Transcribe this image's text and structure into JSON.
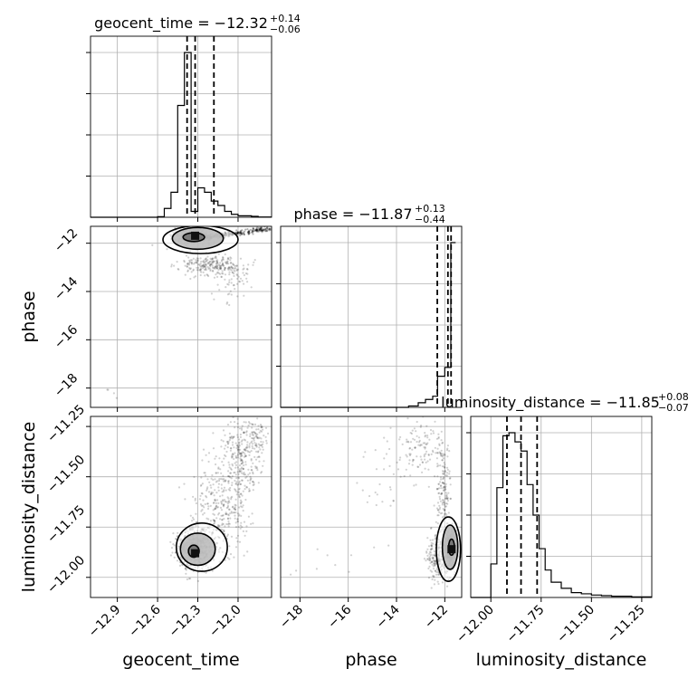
{
  "chart_data": {
    "type": "corner",
    "parameters": [
      {
        "name": "geocent_time",
        "axis_label": "geocent_time",
        "title_main": "geocent_time = −12.32",
        "title_plus": "+0.14",
        "title_minus": "−0.06",
        "range": [
          -13.1,
          -11.75
        ],
        "ticks": [
          -12.9,
          -12.6,
          -12.3,
          -12.0
        ],
        "tick_labels": [
          "−12.9",
          "−12.6",
          "−12.3",
          "−12.0"
        ],
        "quantiles": [
          -12.38,
          -12.32,
          -12.18
        ],
        "hist_edges": [
          -13.1,
          -13.0,
          -12.9,
          -12.8,
          -12.7,
          -12.6,
          -12.55,
          -12.5,
          -12.45,
          -12.4,
          -12.35,
          -12.3,
          -12.25,
          -12.2,
          -12.15,
          -12.1,
          -12.05,
          -12.0,
          -11.95,
          -11.9,
          -11.85,
          -11.75
        ],
        "hist_counts": [
          0,
          0,
          0,
          0,
          0,
          2,
          30,
          85,
          380,
          560,
          20,
          100,
          85,
          55,
          40,
          20,
          10,
          5,
          5,
          3,
          1
        ]
      },
      {
        "name": "phase",
        "axis_label": "phase",
        "title_main": "phase = −11.87",
        "title_plus": "+0.13",
        "title_minus": "−0.44",
        "range": [
          -18.8,
          -11.3
        ],
        "ticks": [
          -18,
          -16,
          -14,
          -12
        ],
        "tick_labels": [
          "−18",
          "−16",
          "−14",
          "−12"
        ],
        "quantiles": [
          -12.31,
          -11.87,
          -11.74
        ],
        "hist_edges": [
          -18.8,
          -13.5,
          -13.1,
          -12.8,
          -12.5,
          -12.3,
          -12.0,
          -11.75,
          -11.55
        ],
        "hist_counts": [
          0,
          3,
          10,
          17,
          24,
          67,
          86,
          355
        ]
      },
      {
        "name": "luminosity_distance",
        "axis_label": "luminosity_distance",
        "title_main": "luminosity_distance = −11.85",
        "title_plus": "+0.08",
        "title_minus": "−0.07",
        "range": [
          -12.1,
          -11.2
        ],
        "ticks": [
          -12.0,
          -11.75,
          -11.5,
          -11.25
        ],
        "tick_labels": [
          "−12.00",
          "−11.75",
          "−11.50",
          "−11.25"
        ],
        "quantiles": [
          -11.92,
          -11.85,
          -11.77
        ],
        "hist_edges": [
          -12.1,
          -12.0,
          -11.97,
          -11.94,
          -11.91,
          -11.88,
          -11.85,
          -11.82,
          -11.79,
          -11.76,
          -11.73,
          -11.7,
          -11.65,
          -11.6,
          -11.55,
          -11.5,
          -11.45,
          -11.4,
          -11.3,
          -11.2
        ],
        "hist_counts": [
          0,
          55,
          180,
          265,
          270,
          255,
          240,
          185,
          135,
          80,
          45,
          25,
          15,
          8,
          6,
          4,
          3,
          2,
          1
        ]
      }
    ],
    "samples_2d": [
      {
        "x_param": "geocent_time",
        "y_param": "phase",
        "clusters": [
          {
            "cx": -12.34,
            "cy": -11.72,
            "sx": 0.07,
            "sy": 0.15,
            "n": 450
          },
          {
            "cx": -12.2,
            "cy": -12.9,
            "sx": 0.12,
            "sy": 0.22,
            "n": 240
          },
          {
            "cx": -12.05,
            "cy": -13.6,
            "sx": 0.06,
            "sy": 0.45,
            "n": 60
          },
          {
            "cx": -13.0,
            "cy": -17.9,
            "sx": 0.08,
            "sy": 0.5,
            "n": 6
          }
        ],
        "band": {
          "x0": -12.35,
          "y0": -11.85,
          "x1": -11.78,
          "y1": -11.4,
          "n": 280,
          "spread": 0.08
        },
        "contours": [
          {
            "cx": -12.33,
            "cy": -11.75,
            "rx": 0.08,
            "ry": 0.18
          },
          {
            "cx": -12.3,
            "cy": -11.8,
            "rx": 0.19,
            "ry": 0.45
          },
          {
            "cx": -12.28,
            "cy": -11.85,
            "rx": 0.28,
            "ry": 0.58
          }
        ],
        "peak": {
          "x": -12.32,
          "y": -11.69
        }
      },
      {
        "x_param": "geocent_time",
        "y_param": "luminosity_distance",
        "clusters": [
          {
            "cx": -12.32,
            "cy": -11.86,
            "sx": 0.07,
            "sy": 0.05,
            "n": 650
          },
          {
            "cx": -12.12,
            "cy": -11.65,
            "sx": 0.1,
            "sy": 0.12,
            "n": 350
          },
          {
            "cx": -11.98,
            "cy": -11.4,
            "sx": 0.07,
            "sy": 0.1,
            "n": 260
          },
          {
            "cx": -11.85,
            "cy": -11.3,
            "sx": 0.05,
            "sy": 0.05,
            "n": 60
          }
        ],
        "contours": [
          {
            "cx": -12.33,
            "cy": -11.87,
            "rx": 0.04,
            "ry": 0.03
          },
          {
            "cx": -12.3,
            "cy": -11.86,
            "rx": 0.13,
            "ry": 0.08
          },
          {
            "cx": -12.27,
            "cy": -11.85,
            "rx": 0.19,
            "ry": 0.12
          }
        ],
        "peak": {
          "x": -12.32,
          "y": -11.88
        }
      },
      {
        "x_param": "phase",
        "y_param": "luminosity_distance",
        "clusters": [
          {
            "cx": -11.75,
            "cy": -11.85,
            "sx": 0.12,
            "sy": 0.05,
            "n": 650
          },
          {
            "cx": -12.3,
            "cy": -11.9,
            "sx": 0.25,
            "sy": 0.06,
            "n": 220
          },
          {
            "cx": -12.1,
            "cy": -11.55,
            "sx": 0.15,
            "sy": 0.12,
            "n": 160
          },
          {
            "cx": -13.0,
            "cy": -11.35,
            "sx": 0.4,
            "sy": 0.08,
            "n": 110
          },
          {
            "cx": -14.5,
            "cy": -11.45,
            "sx": 0.6,
            "sy": 0.15,
            "n": 35
          },
          {
            "cx": -16.5,
            "cy": -11.95,
            "sx": 0.8,
            "sy": 0.06,
            "n": 8
          }
        ],
        "contours": [
          {
            "cx": -11.72,
            "cy": -11.85,
            "rx": 0.12,
            "ry": 0.04
          },
          {
            "cx": -11.78,
            "cy": -11.85,
            "rx": 0.32,
            "ry": 0.11
          },
          {
            "cx": -11.85,
            "cy": -11.86,
            "rx": 0.5,
            "ry": 0.16
          }
        ],
        "peak": {
          "x": -11.72,
          "y": -11.86
        }
      }
    ],
    "grid": true
  }
}
